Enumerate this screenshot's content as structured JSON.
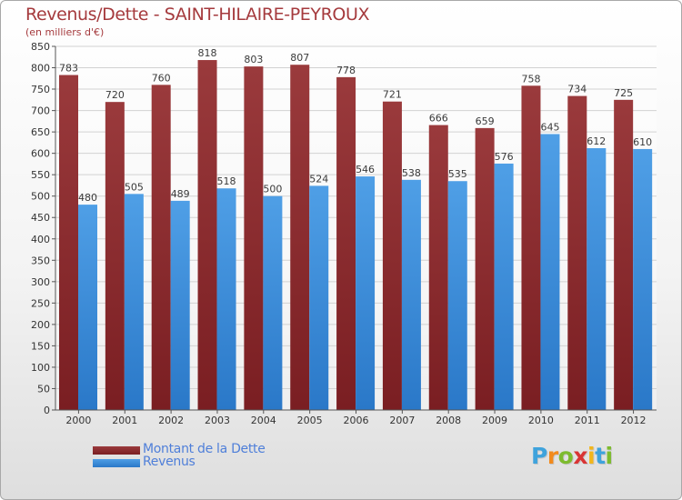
{
  "title": "Revenus/Dette - SAINT-HILAIRE-PEYROUX",
  "subtitle": "(en milliers d'€)",
  "logo": {
    "text": "Proxiti",
    "letters": [
      "P",
      "r",
      "o",
      "x",
      "i",
      "t",
      "i"
    ],
    "colors": [
      "#3fa3dc",
      "#f28a1c",
      "#7dbb2e",
      "#d93434",
      "#f2b61c",
      "#3fa3dc",
      "#7dbb2e"
    ]
  },
  "colors": {
    "debt": "#7a1e22",
    "debt_light": "#9a3a3c",
    "revenue": "#4f9fe6",
    "revenue_dark": "#2a78c8",
    "title": "#a53a3d",
    "axis_text": "#333333",
    "grid": "#d2d2d2"
  },
  "chart_data": {
    "type": "bar",
    "title": "Revenus/Dette - SAINT-HILAIRE-PEYROUX",
    "ylabel": "(en milliers d'€)",
    "xlabel": "",
    "ylim": [
      0,
      850
    ],
    "ytick_step": 50,
    "grid": true,
    "legend_position": "bottom-left",
    "categories": [
      "2000",
      "2001",
      "2002",
      "2003",
      "2004",
      "2005",
      "2006",
      "2007",
      "2008",
      "2009",
      "2010",
      "2011",
      "2012"
    ],
    "series": [
      {
        "name": "Montant de la Dette",
        "values": [
          783,
          720,
          760,
          818,
          803,
          807,
          778,
          721,
          666,
          659,
          758,
          734,
          725
        ]
      },
      {
        "name": "Revenus",
        "values": [
          480,
          505,
          489,
          518,
          500,
          524,
          546,
          538,
          535,
          576,
          645,
          612,
          610
        ]
      }
    ]
  }
}
